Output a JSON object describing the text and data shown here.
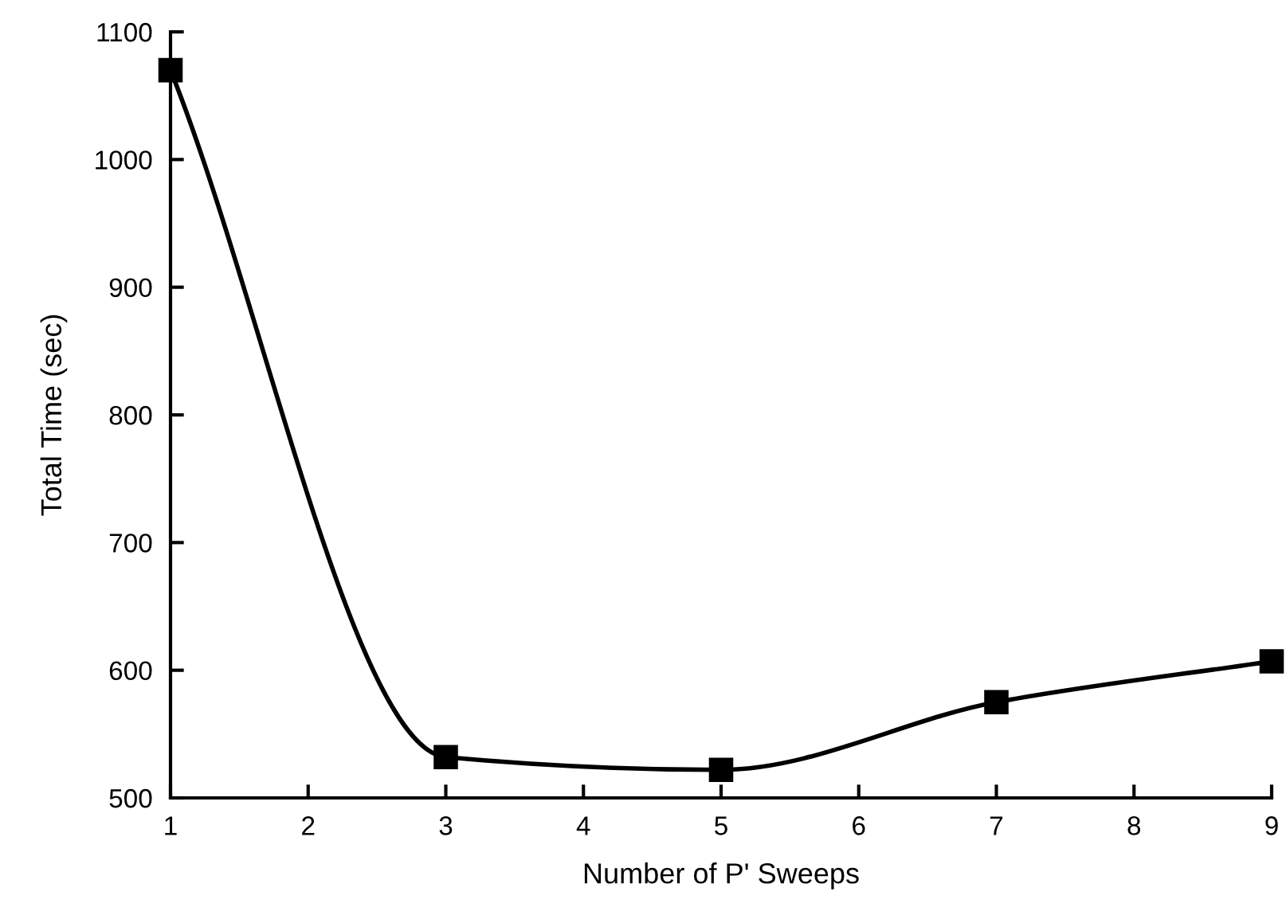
{
  "chart_data": {
    "type": "line",
    "xlabel": "Number of P' Sweeps",
    "ylabel": "Total Time (sec)",
    "x": [
      1,
      3,
      5,
      7,
      9
    ],
    "series": [
      {
        "color": "#000000",
        "values": [
          1070,
          532,
          522,
          575,
          607
        ]
      }
    ],
    "xlim": [
      1,
      9
    ],
    "xticks": [
      1,
      2,
      3,
      4,
      5,
      6,
      7,
      8,
      9
    ],
    "ylim": [
      500,
      1100
    ],
    "yticks": [
      500,
      600,
      700,
      800,
      900,
      1000,
      1100
    ],
    "grid": false,
    "marker": "square",
    "line_style": "solid"
  }
}
